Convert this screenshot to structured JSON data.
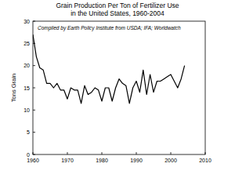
{
  "chart_data": {
    "type": "line",
    "title": "Grain Production Per Ton of Fertilizer Use",
    "subtitle": "in the United States, 1960-2004",
    "annotation": "Compiled by Earth Policy Institute from  USDA; IFA; Worldwatch",
    "y_label": "Tons Grain",
    "x": [
      1960,
      1961,
      1962,
      1963,
      1964,
      1965,
      1966,
      1967,
      1968,
      1969,
      1970,
      1971,
      1972,
      1973,
      1974,
      1975,
      1976,
      1977,
      1978,
      1979,
      1980,
      1981,
      1982,
      1983,
      1984,
      1985,
      1986,
      1987,
      1988,
      1989,
      1990,
      1991,
      1992,
      1993,
      1994,
      1995,
      1996,
      1997,
      1998,
      1999,
      2000,
      2001,
      2002,
      2003,
      2004
    ],
    "values": [
      27,
      22,
      19.5,
      19,
      16,
      16,
      15,
      16,
      14.5,
      14.5,
      12.5,
      15,
      14.5,
      14.5,
      11.5,
      15.5,
      13.5,
      14,
      15,
      14.5,
      12,
      15,
      15,
      12,
      15,
      17,
      16,
      15.5,
      11.5,
      15,
      16.5,
      14,
      19,
      13.5,
      18,
      14,
      16.5,
      16.5,
      17,
      17.5,
      18,
      16.5,
      15,
      17,
      20
    ],
    "color": "#000000",
    "xlim": [
      1960,
      2010
    ],
    "xticks": [
      1960,
      1970,
      1980,
      1990,
      2000,
      2010
    ],
    "ylim": [
      0,
      30
    ],
    "yticks": [
      0,
      5,
      10,
      15,
      20,
      25,
      30
    ],
    "grid": false
  }
}
